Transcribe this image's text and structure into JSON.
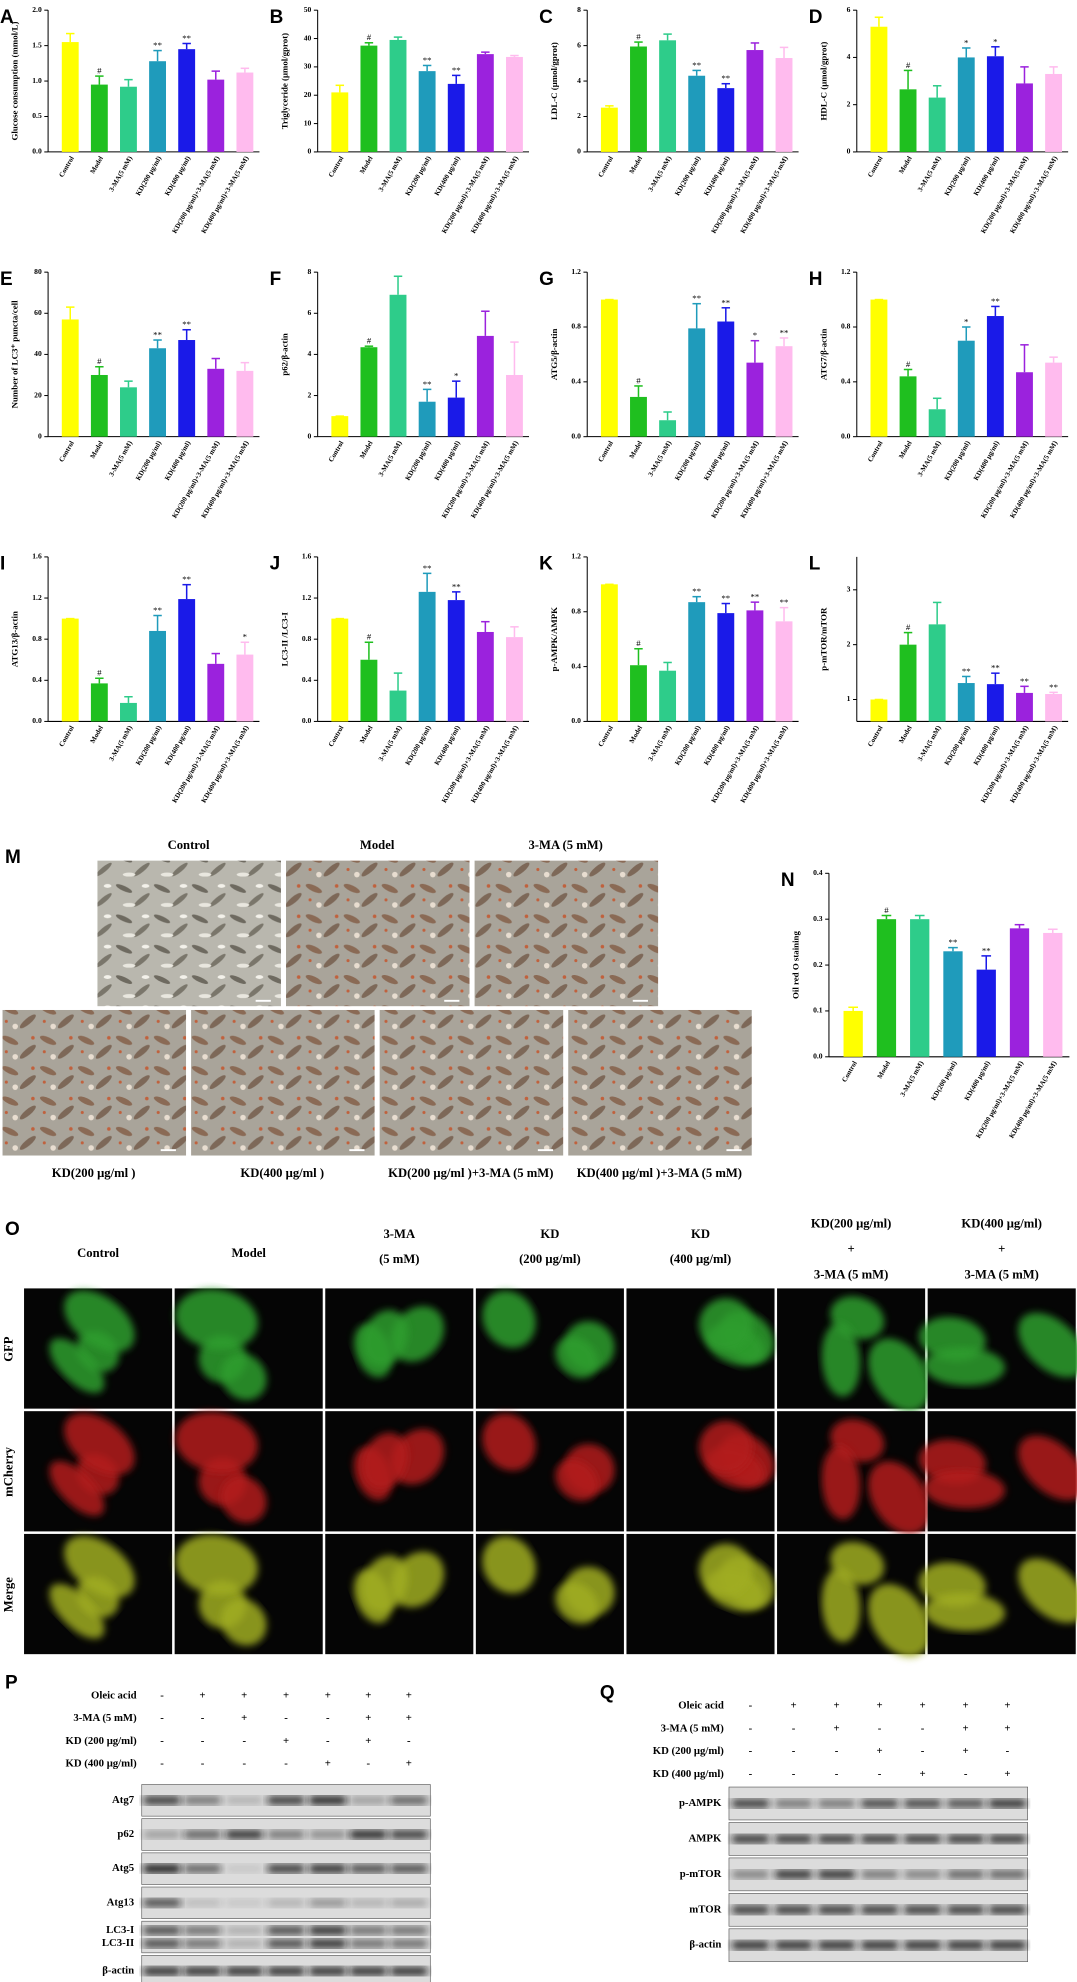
{
  "chart_data": [
    {
      "type": "bar",
      "panel": "A",
      "ylabel": "Glucose consumption (mmol/L)",
      "categories": [
        "Control",
        "Model",
        "3-MA(5 mM)",
        "KD(200 μg/ml)",
        "KD(400 μg/ml)",
        "KD(200 μg/ml)+3-MA(5 mM)",
        "KD(400 μg/ml)+3-MA(5 mM)"
      ],
      "values": [
        1.55,
        0.95,
        0.92,
        1.28,
        1.45,
        1.02,
        1.12
      ],
      "errors": [
        0.12,
        0.12,
        0.1,
        0.15,
        0.08,
        0.12,
        0.06
      ],
      "annotations": [
        null,
        "#",
        null,
        "**",
        "**",
        null,
        null
      ],
      "colors": [
        "#ffff00",
        "#1fbf1f",
        "#2ecc8a",
        "#1f9bbb",
        "#1a1ae8",
        "#9b22dd",
        "#ffbbee"
      ],
      "ylim": [
        0,
        2
      ],
      "yticks": [
        {
          "value": 0,
          "label": "0.0"
        },
        {
          "value": 0.5,
          "label": "0.5"
        },
        {
          "value": 1,
          "label": "1.0"
        },
        {
          "value": 1.5,
          "label": "1.5"
        },
        {
          "value": 2,
          "label": "2.0"
        }
      ]
    },
    {
      "type": "bar",
      "panel": "B",
      "ylabel": "Triglyceride (μmol/gprot)",
      "categories": [
        "Control",
        "Model",
        "3-MA(5 mM)",
        "KD(200 μg/ml)",
        "KD(400 μg/ml)",
        "KD(200 μg/ml)+3-MA(5 mM)",
        "KD(400 μg/ml)+3-MA(5 mM)"
      ],
      "values": [
        21,
        37.5,
        39.5,
        28.5,
        24,
        34.5,
        33.5
      ],
      "errors": [
        2.5,
        1,
        1,
        2,
        3,
        0.7,
        0.5
      ],
      "annotations": [
        null,
        "#",
        null,
        "**",
        "**",
        null,
        null
      ],
      "colors": [
        "#ffff00",
        "#1fbf1f",
        "#2ecc8a",
        "#1f9bbb",
        "#1a1ae8",
        "#9b22dd",
        "#ffbbee"
      ],
      "ylim": [
        0,
        50
      ],
      "yticks": [
        0,
        10,
        20,
        30,
        40,
        50
      ]
    },
    {
      "type": "bar",
      "panel": "C",
      "ylabel": "LDL-C (μmol/gprot)",
      "categories": [
        "Control",
        "Model",
        "3-MA(5 mM)",
        "KD(200 μg/ml)",
        "KD(400 μg/ml)",
        "KD(200 μg/ml)+3-MA(5 mM)",
        "KD(400 μg/ml)+3-MA(5 mM)"
      ],
      "values": [
        2.5,
        5.95,
        6.3,
        4.3,
        3.6,
        5.75,
        5.3
      ],
      "errors": [
        0.1,
        0.25,
        0.35,
        0.3,
        0.25,
        0.4,
        0.6
      ],
      "annotations": [
        null,
        "#",
        null,
        "**",
        "**",
        null,
        null
      ],
      "colors": [
        "#ffff00",
        "#1fbf1f",
        "#2ecc8a",
        "#1f9bbb",
        "#1a1ae8",
        "#9b22dd",
        "#ffbbee"
      ],
      "ylim": [
        0,
        8
      ],
      "yticks": [
        0,
        2,
        4,
        6,
        8
      ]
    },
    {
      "type": "bar",
      "panel": "D",
      "ylabel": "HDL-C (μmol/gprot)",
      "categories": [
        "Control",
        "Model",
        "3-MA(5 mM)",
        "KD(200 μg/ml)",
        "KD(400 μg/ml)",
        "KD(200 μg/ml)+3-MA(5 mM)",
        "KD(400 μg/ml)+3-MA(5 mM)"
      ],
      "values": [
        5.3,
        2.65,
        2.3,
        4.0,
        4.05,
        2.9,
        3.3
      ],
      "errors": [
        0.4,
        0.8,
        0.5,
        0.4,
        0.4,
        0.7,
        0.3
      ],
      "annotations": [
        null,
        "#",
        null,
        "*",
        "*",
        null,
        null
      ],
      "colors": [
        "#ffff00",
        "#1fbf1f",
        "#2ecc8a",
        "#1f9bbb",
        "#1a1ae8",
        "#9b22dd",
        "#ffbbee"
      ],
      "ylim": [
        0,
        6
      ],
      "yticks": [
        0,
        2,
        4,
        6
      ]
    },
    {
      "type": "bar",
      "panel": "E",
      "ylabel": "Number of LC3⁺ puncta/cell",
      "categories": [
        "Control",
        "Model",
        "3-MA(5 mM)",
        "KD(200 μg/ml)",
        "KD(400 μg/ml)",
        "KD(200 μg/ml)+3-MA(5 mM)",
        "KD(400 μg/ml)+3-MA(5 mM)"
      ],
      "values": [
        57,
        30,
        24,
        43,
        47,
        33,
        32
      ],
      "errors": [
        6,
        4,
        3,
        4,
        5,
        5,
        4
      ],
      "annotations": [
        null,
        "#",
        null,
        "**",
        "**",
        null,
        null
      ],
      "colors": [
        "#ffff00",
        "#1fbf1f",
        "#2ecc8a",
        "#1f9bbb",
        "#1a1ae8",
        "#9b22dd",
        "#ffbbee"
      ],
      "ylim": [
        0,
        80
      ],
      "yticks": [
        0,
        20,
        40,
        60,
        80
      ]
    },
    {
      "type": "bar",
      "panel": "F",
      "ylabel": "p62/β-actin",
      "categories": [
        "Control",
        "Model",
        "3-MA(5 mM)",
        "KD(200 μg/ml)",
        "KD(400 μg/ml)",
        "KD(200 μg/ml)+3-MA(5 mM)",
        "KD(400 μg/ml)+3-MA(5 mM)"
      ],
      "values": [
        1,
        4.35,
        6.9,
        1.7,
        1.9,
        4.9,
        3.0
      ],
      "errors": [
        0,
        0.05,
        0.9,
        0.6,
        0.8,
        1.2,
        1.6
      ],
      "annotations": [
        null,
        "#",
        null,
        "**",
        "*",
        null,
        null
      ],
      "colors": [
        "#ffff00",
        "#1fbf1f",
        "#2ecc8a",
        "#1f9bbb",
        "#1a1ae8",
        "#9b22dd",
        "#ffbbee"
      ],
      "ylim": [
        0,
        8
      ],
      "yticks": [
        0,
        2,
        4,
        6,
        8
      ]
    },
    {
      "type": "bar",
      "panel": "G",
      "ylabel": "ATG5/β-actin",
      "categories": [
        "Control",
        "Model",
        "3-MA(5 mM)",
        "KD(200 μg/ml)",
        "KD(400 μg/ml)",
        "KD(200 μg/ml)+3-MA(5 mM)",
        "KD(400 μg/ml)+3-MA(5 mM)"
      ],
      "values": [
        1.0,
        0.29,
        0.12,
        0.79,
        0.84,
        0.54,
        0.66
      ],
      "errors": [
        0,
        0.08,
        0.06,
        0.18,
        0.1,
        0.16,
        0.06
      ],
      "annotations": [
        null,
        "#",
        null,
        "**",
        "**",
        "*",
        "**"
      ],
      "colors": [
        "#ffff00",
        "#1fbf1f",
        "#2ecc8a",
        "#1f9bbb",
        "#1a1ae8",
        "#9b22dd",
        "#ffbbee"
      ],
      "ylim": [
        0,
        1.2
      ],
      "yticks": [
        {
          "value": 0,
          "label": "0.0"
        },
        0.4,
        0.8,
        1.2
      ]
    },
    {
      "type": "bar",
      "panel": "H",
      "ylabel": "ATG7/β-actin",
      "categories": [
        "Control",
        "Model",
        "3-MA(5 mM)",
        "KD(200 μg/ml)",
        "KD(400 μg/ml)",
        "KD(200 μg/ml)+3-MA(5 mM)",
        "KD(400 μg/ml)+3-MA(5 mM)"
      ],
      "values": [
        1.0,
        0.44,
        0.2,
        0.7,
        0.88,
        0.47,
        0.54
      ],
      "errors": [
        0,
        0.05,
        0.08,
        0.1,
        0.07,
        0.2,
        0.04
      ],
      "annotations": [
        null,
        "#",
        null,
        "*",
        "**",
        null,
        null
      ],
      "colors": [
        "#ffff00",
        "#1fbf1f",
        "#2ecc8a",
        "#1f9bbb",
        "#1a1ae8",
        "#9b22dd",
        "#ffbbee"
      ],
      "ylim": [
        0,
        1.2
      ],
      "yticks": [
        {
          "value": 0,
          "label": "0.0"
        },
        0.4,
        0.8,
        1.2
      ]
    },
    {
      "type": "bar",
      "panel": "I",
      "ylabel": "ATG13/β-actin",
      "categories": [
        "Control",
        "Model",
        "3-MA(5 mM)",
        "KD(200 μg/ml)",
        "KD(400 μg/ml)",
        "KD(200 μg/ml)+3-MA(5 mM)",
        "KD(400 μg/ml)+3-MA(5 mM)"
      ],
      "values": [
        1.0,
        0.37,
        0.18,
        0.88,
        1.19,
        0.56,
        0.65
      ],
      "errors": [
        0,
        0.05,
        0.06,
        0.15,
        0.14,
        0.1,
        0.12
      ],
      "annotations": [
        null,
        "#",
        null,
        "**",
        "**",
        null,
        "*"
      ],
      "colors": [
        "#ffff00",
        "#1fbf1f",
        "#2ecc8a",
        "#1f9bbb",
        "#1a1ae8",
        "#9b22dd",
        "#ffbbee"
      ],
      "ylim": [
        0,
        1.6
      ],
      "yticks": [
        {
          "value": 0,
          "label": "0.0"
        },
        0.4,
        0.8,
        1.2,
        1.6
      ]
    },
    {
      "type": "bar",
      "panel": "J",
      "ylabel": "LC3-II /LC3-I",
      "categories": [
        "Control",
        "Model",
        "3-MA(5 mM)",
        "KD(200 μg/ml)",
        "KD(400 μg/ml)",
        "KD(200 μg/ml)+3-MA(5 mM)",
        "KD(400 μg/ml)+3-MA(5 mM)"
      ],
      "values": [
        1.0,
        0.6,
        0.3,
        1.26,
        1.18,
        0.87,
        0.82
      ],
      "errors": [
        0,
        0.17,
        0.17,
        0.18,
        0.08,
        0.1,
        0.1
      ],
      "annotations": [
        null,
        "#",
        null,
        "**",
        "**",
        null,
        null
      ],
      "colors": [
        "#ffff00",
        "#1fbf1f",
        "#2ecc8a",
        "#1f9bbb",
        "#1a1ae8",
        "#9b22dd",
        "#ffbbee"
      ],
      "ylim": [
        0,
        1.6
      ],
      "yticks": [
        {
          "value": 0,
          "label": "0.0"
        },
        0.4,
        0.8,
        1.2,
        1.6
      ]
    },
    {
      "type": "bar",
      "panel": "K",
      "ylabel": "p-AMPK/AMPK",
      "categories": [
        "Control",
        "Model",
        "3-MA(5 mM)",
        "KD(200 μg/ml)",
        "KD(400 μg/ml)",
        "KD(200 μg/ml)+3-MA(5 mM)",
        "KD(400 μg/ml)+3-MA(5 mM)"
      ],
      "values": [
        1.0,
        0.41,
        0.37,
        0.87,
        0.79,
        0.81,
        0.73
      ],
      "errors": [
        0,
        0.12,
        0.06,
        0.04,
        0.07,
        0.06,
        0.1
      ],
      "annotations": [
        null,
        "#",
        null,
        "**",
        "**",
        "**",
        "**"
      ],
      "colors": [
        "#ffff00",
        "#1fbf1f",
        "#2ecc8a",
        "#1f9bbb",
        "#1a1ae8",
        "#9b22dd",
        "#ffbbee"
      ],
      "ylim": [
        0,
        1.2
      ],
      "yticks": [
        {
          "value": 0,
          "label": "0.0"
        },
        0.4,
        0.8,
        1.2
      ]
    },
    {
      "type": "bar",
      "panel": "L",
      "ylabel": "p-mTOR/mTOR",
      "categories": [
        "Control",
        "Model",
        "3-MA(5 mM)",
        "KD(200 μg/ml)",
        "KD(400 μg/ml)",
        "KD(200 μg/ml)+3-MA(5 mM)",
        "KD(400 μg/ml)+3-MA(5 mM)"
      ],
      "values": [
        1.0,
        2.0,
        2.37,
        1.3,
        1.28,
        1.12,
        1.1
      ],
      "errors": [
        0,
        0.22,
        0.4,
        0.12,
        0.2,
        0.12,
        0.03
      ],
      "annotations": [
        null,
        "#",
        null,
        "**",
        "**",
        "**",
        "**"
      ],
      "colors": [
        "#ffff00",
        "#1fbf1f",
        "#2ecc8a",
        "#1f9bbb",
        "#1a1ae8",
        "#9b22dd",
        "#ffbbee"
      ],
      "ylim": [
        0.6,
        3.6
      ],
      "yticks": [
        1,
        2,
        3
      ]
    },
    {
      "type": "bar",
      "panel": "N",
      "ylabel": "Oil red O staining",
      "categories": [
        "Control",
        "Model",
        "3-MA(5 mM)",
        "KD(200 μg/ml)",
        "KD(400 μg/ml)",
        "KD(200 μg/ml)+3-MA(5 mM)",
        "KD(400 μg/ml)+3-MA(5 mM)"
      ],
      "values": [
        0.1,
        0.3,
        0.3,
        0.23,
        0.19,
        0.28,
        0.27
      ],
      "errors": [
        0.008,
        0.008,
        0.008,
        0.008,
        0.03,
        0.008,
        0.008
      ],
      "annotations": [
        null,
        "#",
        null,
        "**",
        "**",
        null,
        null
      ],
      "colors": [
        "#ffff00",
        "#1fbf1f",
        "#2ecc8a",
        "#1f9bbb",
        "#1a1ae8",
        "#9b22dd",
        "#ffbbee"
      ],
      "ylim": [
        0,
        0.4
      ],
      "yticks": [
        {
          "value": 0,
          "label": "0.0"
        },
        0.1,
        0.2,
        0.3,
        0.4
      ]
    }
  ],
  "panel_m": {
    "label": "M",
    "top": [
      "Control",
      "Model",
      "3-MA (5 mM)"
    ],
    "bottom": [
      "KD(200 μg/ml )",
      "KD(400 μg/ml )",
      "KD(200 μg/ml )+3-MA (5 mM)",
      "KD(400 μg/ml )+3-MA (5 mM)"
    ]
  },
  "panel_o": {
    "label": "O",
    "columns": [
      [
        "Control"
      ],
      [
        "Model"
      ],
      [
        "3-MA",
        "(5 mM)"
      ],
      [
        "KD",
        "(200 μg/ml)"
      ],
      [
        "KD",
        "(400 μg/ml)"
      ],
      [
        "KD(200 μg/ml)",
        "+",
        "3-MA (5 mM)"
      ],
      [
        "KD(400 μg/ml)",
        "+",
        "3-MA (5 mM)"
      ]
    ],
    "rows": [
      "GFP",
      "mCherry",
      "Merge"
    ]
  },
  "panel_p": {
    "label": "P",
    "treatments": [
      {
        "label": "Oleic acid",
        "signs": [
          "-",
          "+",
          "+",
          "+",
          "+",
          "+",
          "+"
        ]
      },
      {
        "label": "3-MA (5 mM)",
        "signs": [
          "-",
          "-",
          "+",
          "-",
          "-",
          "+",
          "+"
        ]
      },
      {
        "label": "KD (200 μg/ml)",
        "signs": [
          "-",
          "-",
          "-",
          "+",
          "-",
          "+",
          "-"
        ]
      },
      {
        "label": "KD (400 μg/ml)",
        "signs": [
          "-",
          "-",
          "-",
          "-",
          "+",
          "-",
          "+"
        ]
      }
    ],
    "bands": [
      [
        "Atg7"
      ],
      [
        "p62"
      ],
      [
        "Atg5"
      ],
      [
        "Atg13"
      ],
      [
        "LC3-I",
        "LC3-II"
      ],
      [
        "β-actin"
      ]
    ]
  },
  "panel_q": {
    "label": "Q",
    "treatments": [
      {
        "label": "Oleic acid",
        "signs": [
          "-",
          "+",
          "+",
          "+",
          "+",
          "+",
          "+"
        ]
      },
      {
        "label": "3-MA (5 mM)",
        "signs": [
          "-",
          "-",
          "+",
          "-",
          "-",
          "+",
          "+"
        ]
      },
      {
        "label": "KD (200 μg/ml)",
        "signs": [
          "-",
          "-",
          "-",
          "+",
          "-",
          "+",
          "-"
        ]
      },
      {
        "label": "KD (400 μg/ml)",
        "signs": [
          "-",
          "-",
          "-",
          "-",
          "+",
          "-",
          "+"
        ]
      }
    ],
    "bands": [
      [
        "p-AMPK"
      ],
      [
        "AMPK"
      ],
      [
        "p-mTOR"
      ],
      [
        "mTOR"
      ],
      [
        "β-actin"
      ]
    ]
  }
}
